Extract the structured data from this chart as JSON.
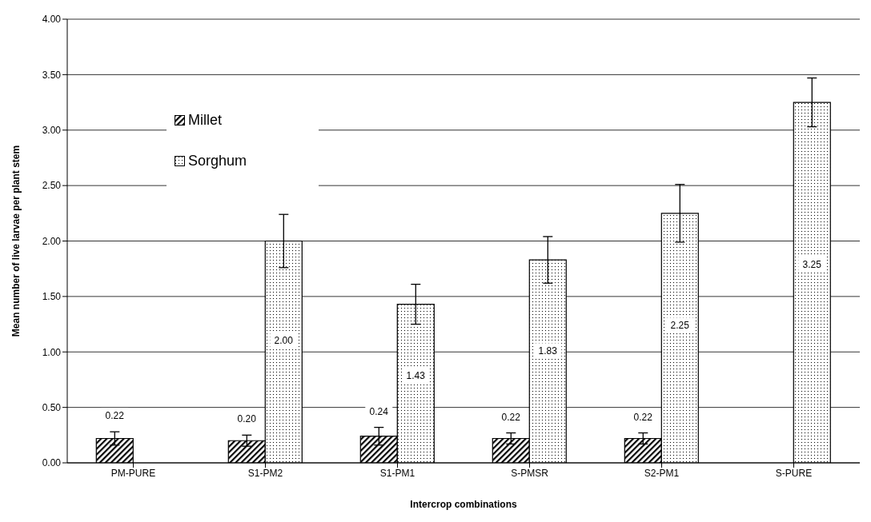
{
  "chart_data": {
    "type": "bar",
    "xlabel": "Intercrop combinations",
    "ylabel": "Mean number of live larvae per plant stem",
    "categories": [
      "PM-PURE",
      "S1-PM2",
      "S1-PM1",
      "S-PMSR",
      "S2-PM1",
      "S-PURE"
    ],
    "series": [
      {
        "name": "Millet",
        "color": "#000000",
        "values": [
          0.22,
          0.2,
          0.24,
          0.22,
          0.22,
          null
        ],
        "errors": [
          0.06,
          0.05,
          0.08,
          0.05,
          0.05,
          null
        ],
        "value_labels": [
          "0.22",
          "0.20",
          "0.24",
          "0.22",
          "0.22",
          null
        ]
      },
      {
        "name": "Sorghum",
        "color": "#000000",
        "values": [
          null,
          2.0,
          1.43,
          1.83,
          2.25,
          3.25
        ],
        "errors": [
          null,
          0.24,
          0.18,
          0.21,
          0.26,
          0.22
        ],
        "value_labels": [
          null,
          "2.00",
          "1.43",
          "1.83",
          "2.25",
          "3.25"
        ]
      }
    ],
    "ylim": [
      0,
      4
    ],
    "yticks": [
      {
        "value": 0,
        "label": "0.00"
      },
      {
        "value": 0.5,
        "label": "0.50"
      },
      {
        "value": 1,
        "label": "1.00"
      },
      {
        "value": 1.5,
        "label": "1.50"
      },
      {
        "value": 2,
        "label": "2.00"
      },
      {
        "value": 2.5,
        "label": "2.50"
      },
      {
        "value": 3,
        "label": "3.00"
      },
      {
        "value": 3.5,
        "label": "3.50"
      },
      {
        "value": 4,
        "label": "4.00"
      }
    ],
    "grid": "y",
    "legend": "top left"
  }
}
